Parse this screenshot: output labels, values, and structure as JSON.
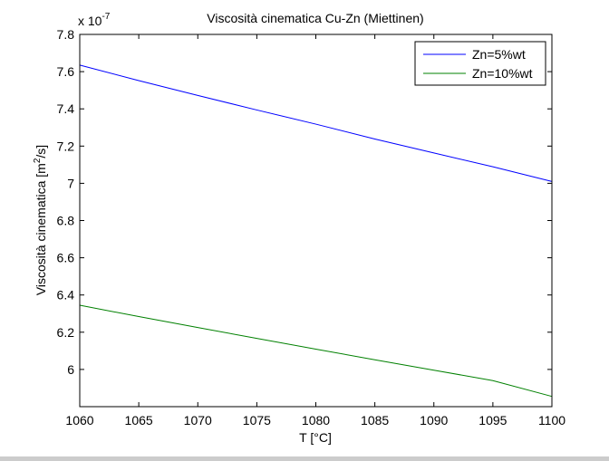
{
  "chart_data": {
    "type": "line",
    "title": "Viscosità cinematica Cu-Zn (Miettinen)",
    "xlabel": "T [°C]",
    "ylabel_prefix": "Viscosità cinematica [m",
    "ylabel_sup": "2",
    "ylabel_suffix": "/s]",
    "y_multiplier": {
      "base": "x 10",
      "exponent": "-7"
    },
    "xlim": [
      1060,
      1100
    ],
    "ylim": [
      5.8,
      7.8
    ],
    "xticks": [
      1060,
      1065,
      1070,
      1075,
      1080,
      1085,
      1090,
      1095,
      1100
    ],
    "yticks": [
      6.0,
      6.2,
      6.4,
      6.6,
      6.8,
      7.0,
      7.2,
      7.4,
      7.6,
      7.8
    ],
    "ytick_labels": [
      "6",
      "6.2",
      "6.4",
      "6.6",
      "6.8",
      "7",
      "7.2",
      "7.4",
      "7.6",
      "7.8"
    ],
    "grid": false,
    "legend_position": "top-right",
    "series": [
      {
        "name": "Zn=5%wt",
        "color": "#0000ff",
        "x": [
          1060,
          1065,
          1070,
          1075,
          1080,
          1085,
          1090,
          1095,
          1100
        ],
        "y": [
          7.635,
          7.552,
          7.472,
          7.394,
          7.318,
          7.238,
          7.163,
          7.089,
          7.01
        ]
      },
      {
        "name": "Zn=10%wt",
        "color": "#008000",
        "x": [
          1060,
          1065,
          1070,
          1075,
          1080,
          1085,
          1090,
          1095,
          1100
        ],
        "y": [
          6.345,
          6.284,
          6.225,
          6.167,
          6.109,
          6.052,
          5.996,
          5.94,
          5.855
        ]
      }
    ]
  }
}
